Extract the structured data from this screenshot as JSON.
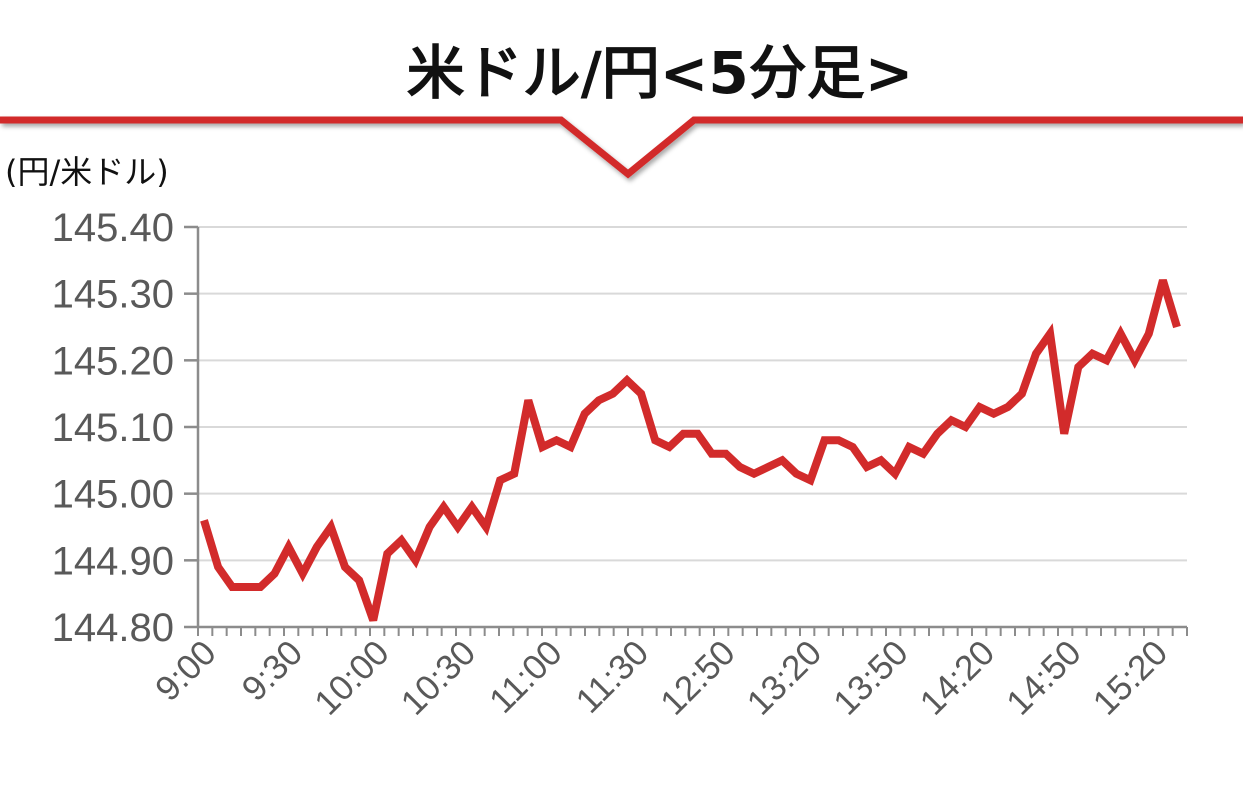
{
  "chart_data": {
    "type": "line",
    "title": "米ドル/円<5分足>",
    "ylabel": "(円/米ドル)",
    "ylim": [
      144.8,
      145.4
    ],
    "y_ticks": [
      "145.40",
      "145.30",
      "145.20",
      "145.10",
      "145.00",
      "144.90",
      "144.80"
    ],
    "x_tick_labels": [
      "9:00",
      "9:30",
      "10:00",
      "10:30",
      "11:00",
      "11:30",
      "12:50",
      "13:20",
      "13:50",
      "14:20",
      "14:50",
      "15:20"
    ],
    "grid": true,
    "series": [
      {
        "color": "#d22b2b",
        "values": [
          144.96,
          144.89,
          144.86,
          144.86,
          144.86,
          144.88,
          144.92,
          144.88,
          144.92,
          144.95,
          144.89,
          144.87,
          144.81,
          144.91,
          144.93,
          144.9,
          144.95,
          144.98,
          144.95,
          144.98,
          144.95,
          145.02,
          145.03,
          145.14,
          145.07,
          145.08,
          145.07,
          145.12,
          145.14,
          145.15,
          145.17,
          145.15,
          145.08,
          145.07,
          145.09,
          145.09,
          145.06,
          145.06,
          145.04,
          145.03,
          145.04,
          145.05,
          145.03,
          145.02,
          145.08,
          145.08,
          145.07,
          145.04,
          145.05,
          145.03,
          145.07,
          145.06,
          145.09,
          145.11,
          145.1,
          145.13,
          145.12,
          145.13,
          145.15,
          145.21,
          145.24,
          145.09,
          145.19,
          145.21,
          145.2,
          145.24,
          145.2,
          145.24,
          145.32,
          145.25
        ]
      }
    ]
  }
}
